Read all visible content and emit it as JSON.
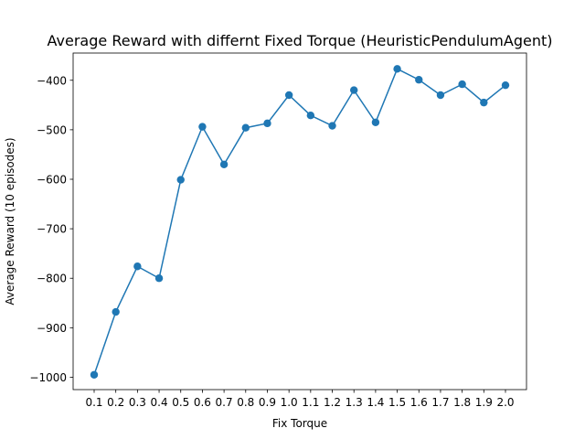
{
  "chart_data": {
    "type": "line",
    "title": "Average Reward with differnt Fixed Torque (HeuristicPendulumAgent)",
    "xlabel": "Fix Torque",
    "ylabel": "Average Reward (10 episodes)",
    "categories": [
      "0.1",
      "0.2",
      "0.3",
      "0.4",
      "0.5",
      "0.6",
      "0.7",
      "0.8",
      "0.9",
      "1.0",
      "1.1",
      "1.2",
      "1.3",
      "1.4",
      "1.5",
      "1.6",
      "1.7",
      "1.8",
      "1.9",
      "2.0"
    ],
    "y_ticks": [
      -1000,
      -900,
      -800,
      -700,
      -600,
      -500,
      -400
    ],
    "y_tick_labels": [
      "−1000",
      "−900",
      "−800",
      "−700",
      "−600",
      "−500",
      "−400"
    ],
    "ylim": [
      -1025,
      -345
    ],
    "grid": false,
    "series": [
      {
        "color": "#1f77b4",
        "marker": "circle",
        "values": [
          -995,
          -868,
          -776,
          -800,
          -601,
          -494,
          -570,
          -496,
          -487,
          -430,
          -471,
          -492,
          -420,
          -485,
          -377,
          -399,
          -430,
          -408,
          -445,
          -410
        ]
      }
    ]
  }
}
